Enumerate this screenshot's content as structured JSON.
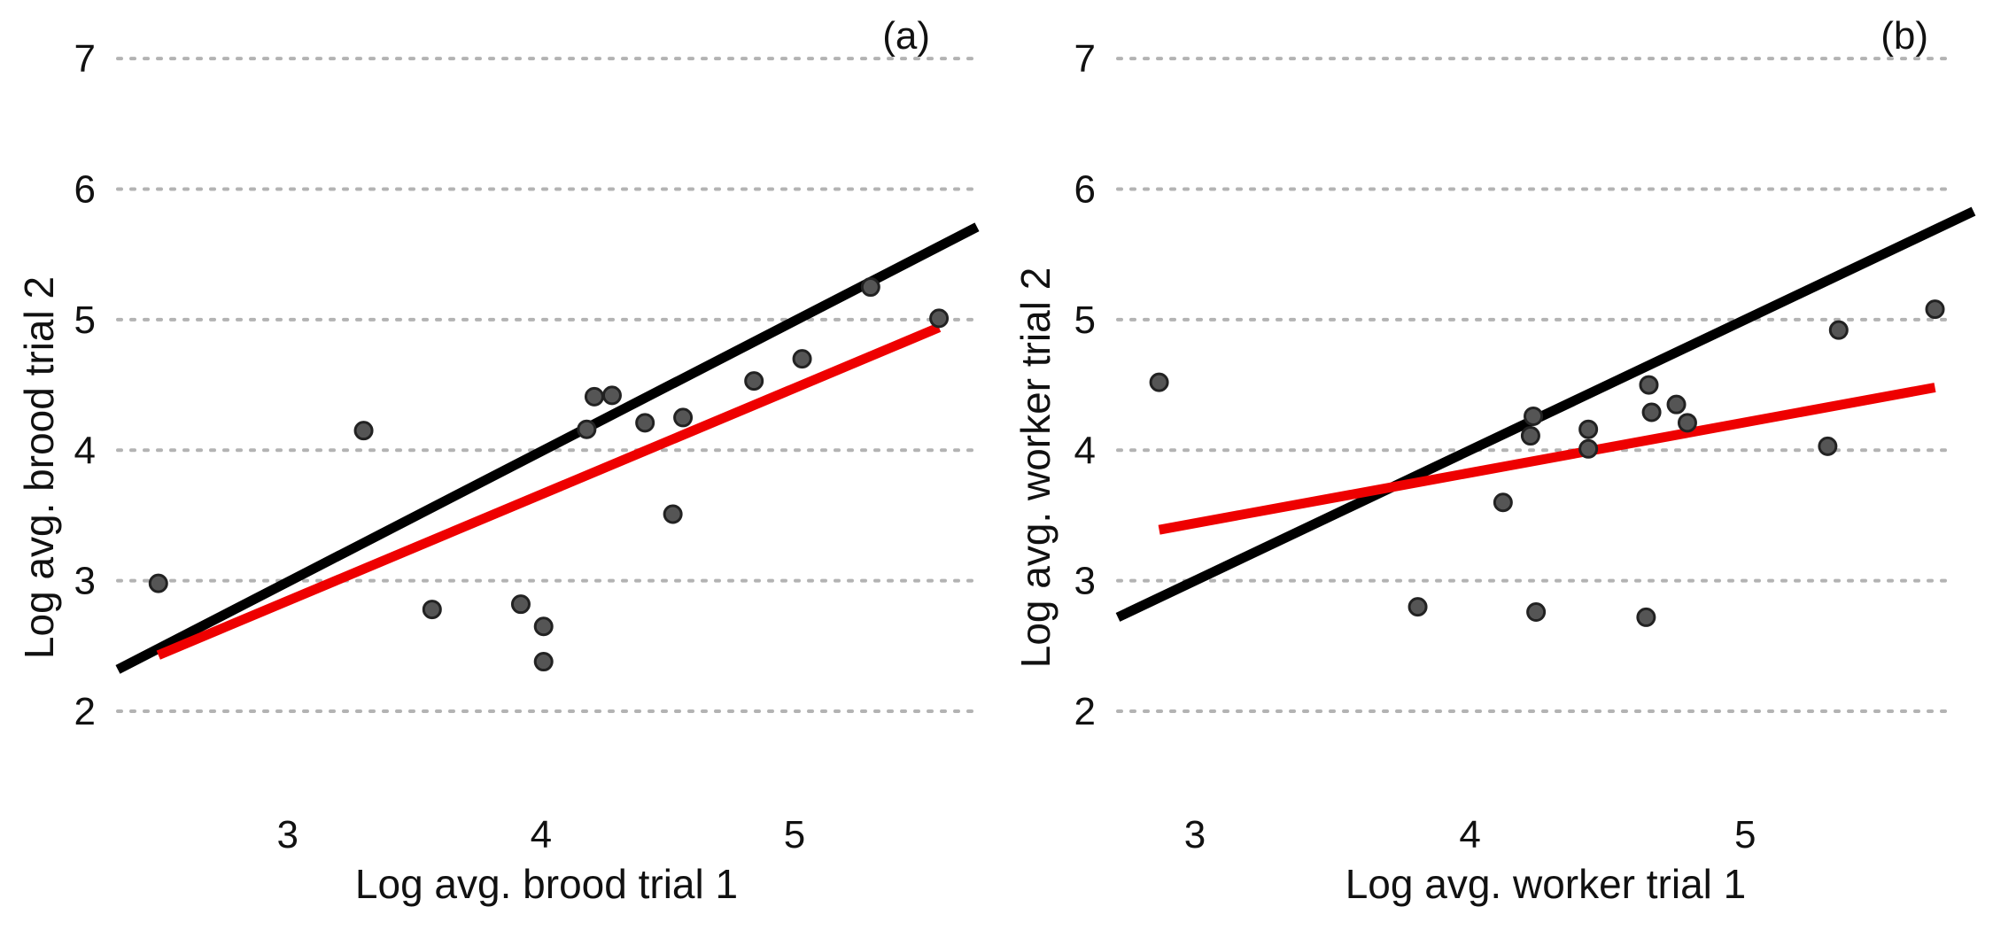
{
  "chart_data": [
    {
      "type": "scatter",
      "panel_label": "(a)",
      "xlabel": "Log avg. brood trial 1",
      "ylabel": "Log avg. brood trial 2",
      "xlim": [
        2.33,
        5.72
      ],
      "ylim": [
        1.6,
        7.15
      ],
      "xticks": [
        "3",
        "4",
        "5"
      ],
      "yticks": [
        "2",
        "3",
        "4",
        "5",
        "6",
        "7"
      ],
      "grid": "horizontal-dotted",
      "points": [
        {
          "x": 2.49,
          "y": 2.98
        },
        {
          "x": 3.3,
          "y": 4.15
        },
        {
          "x": 3.57,
          "y": 2.78
        },
        {
          "x": 3.92,
          "y": 2.82
        },
        {
          "x": 4.01,
          "y": 2.65
        },
        {
          "x": 4.01,
          "y": 2.38
        },
        {
          "x": 4.18,
          "y": 4.16
        },
        {
          "x": 4.21,
          "y": 4.41
        },
        {
          "x": 4.28,
          "y": 4.42
        },
        {
          "x": 4.41,
          "y": 4.21
        },
        {
          "x": 4.52,
          "y": 3.51
        },
        {
          "x": 4.56,
          "y": 4.25
        },
        {
          "x": 4.84,
          "y": 4.53
        },
        {
          "x": 5.03,
          "y": 4.7
        },
        {
          "x": 5.3,
          "y": 5.25
        },
        {
          "x": 5.57,
          "y": 5.01
        }
      ],
      "lines": [
        {
          "name": "identity (1:1)",
          "color": "#000000",
          "x": [
            2.33,
            5.72
          ],
          "y": [
            2.32,
            5.71
          ]
        },
        {
          "name": "fitted regression",
          "color": "#ee0000",
          "x": [
            2.49,
            5.57
          ],
          "y": [
            2.43,
            4.94
          ]
        }
      ]
    },
    {
      "type": "scatter",
      "panel_label": "(b)",
      "xlabel": "Log avg. worker trial 1",
      "ylabel": "Log avg. worker trial 2",
      "xlim": [
        2.72,
        5.83
      ],
      "ylim": [
        1.6,
        7.15
      ],
      "xticks": [
        "3",
        "4",
        "5"
      ],
      "yticks": [
        "2",
        "3",
        "4",
        "5",
        "6",
        "7"
      ],
      "grid": "horizontal-dotted",
      "points": [
        {
          "x": 2.87,
          "y": 4.52
        },
        {
          "x": 3.81,
          "y": 2.8
        },
        {
          "x": 4.12,
          "y": 3.6
        },
        {
          "x": 4.22,
          "y": 4.11
        },
        {
          "x": 4.23,
          "y": 4.26
        },
        {
          "x": 4.24,
          "y": 2.76
        },
        {
          "x": 4.43,
          "y": 4.01
        },
        {
          "x": 4.43,
          "y": 4.16
        },
        {
          "x": 4.64,
          "y": 2.72
        },
        {
          "x": 4.65,
          "y": 4.5
        },
        {
          "x": 4.66,
          "y": 4.29
        },
        {
          "x": 4.75,
          "y": 4.35
        },
        {
          "x": 4.79,
          "y": 4.21
        },
        {
          "x": 5.3,
          "y": 4.03
        },
        {
          "x": 5.34,
          "y": 4.92
        },
        {
          "x": 5.69,
          "y": 5.08
        }
      ],
      "lines": [
        {
          "name": "identity (1:1)",
          "color": "#000000",
          "x": [
            2.72,
            5.83
          ],
          "y": [
            2.72,
            5.83
          ]
        },
        {
          "name": "fitted regression",
          "color": "#ee0000",
          "x": [
            2.87,
            5.69
          ],
          "y": [
            3.39,
            4.48
          ]
        }
      ]
    }
  ]
}
